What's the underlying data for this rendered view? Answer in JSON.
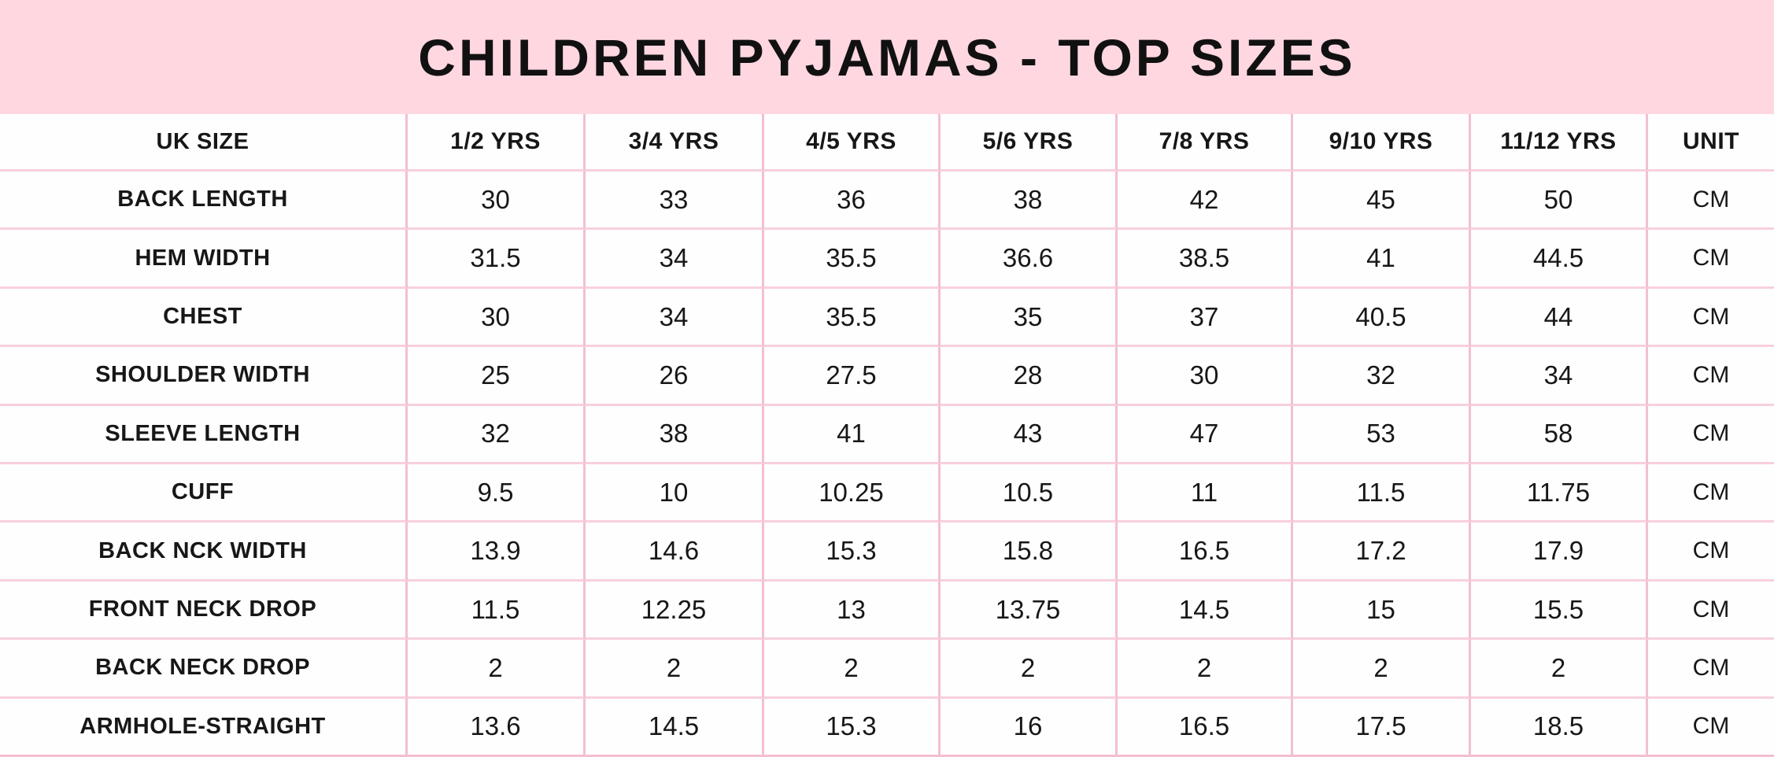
{
  "title": "CHILDREN PYJAMAS - TOP SIZES",
  "colors": {
    "banner_pink": "#ffd7e1",
    "border_pink_vertical": "#f3bfd1",
    "border_pink_horizontal": "#f8d0dc",
    "text": "#171717",
    "cell_background": "#fefefe"
  },
  "chart_data": {
    "type": "table",
    "title": "CHILDREN PYJAMAS - TOP SIZES",
    "columns": [
      "UK SIZE",
      "1/2 YRS",
      "3/4 YRS",
      "4/5 YRS",
      "5/6 YRS",
      "7/8 YRS",
      "9/10 YRS",
      "11/12 YRS",
      "UNIT"
    ],
    "rows": [
      {
        "label": "BACK LENGTH",
        "values": [
          "30",
          "33",
          "36",
          "38",
          "42",
          "45",
          "50"
        ],
        "unit": "CM"
      },
      {
        "label": "HEM WIDTH",
        "values": [
          "31.5",
          "34",
          "35.5",
          "36.6",
          "38.5",
          "41",
          "44.5"
        ],
        "unit": "CM"
      },
      {
        "label": "CHEST",
        "values": [
          "30",
          "34",
          "35.5",
          "35",
          "37",
          "40.5",
          "44"
        ],
        "unit": "CM"
      },
      {
        "label": "SHOULDER WIDTH",
        "values": [
          "25",
          "26",
          "27.5",
          "28",
          "30",
          "32",
          "34"
        ],
        "unit": "CM"
      },
      {
        "label": "SLEEVE LENGTH",
        "values": [
          "32",
          "38",
          "41",
          "43",
          "47",
          "53",
          "58"
        ],
        "unit": "CM"
      },
      {
        "label": "CUFF",
        "values": [
          "9.5",
          "10",
          "10.25",
          "10.5",
          "11",
          "11.5",
          "11.75"
        ],
        "unit": "CM"
      },
      {
        "label": "BACK NCK WIDTH",
        "values": [
          "13.9",
          "14.6",
          "15.3",
          "15.8",
          "16.5",
          "17.2",
          "17.9"
        ],
        "unit": "CM"
      },
      {
        "label": "FRONT NECK DROP",
        "values": [
          "11.5",
          "12.25",
          "13",
          "13.75",
          "14.5",
          "15",
          "15.5"
        ],
        "unit": "CM"
      },
      {
        "label": "BACK NECK DROP",
        "values": [
          "2",
          "2",
          "2",
          "2",
          "2",
          "2",
          "2"
        ],
        "unit": "CM"
      },
      {
        "label": "ARMHOLE-STRAIGHT",
        "values": [
          "13.6",
          "14.5",
          "15.3",
          "16",
          "16.5",
          "17.5",
          "18.5"
        ],
        "unit": "CM"
      }
    ]
  }
}
